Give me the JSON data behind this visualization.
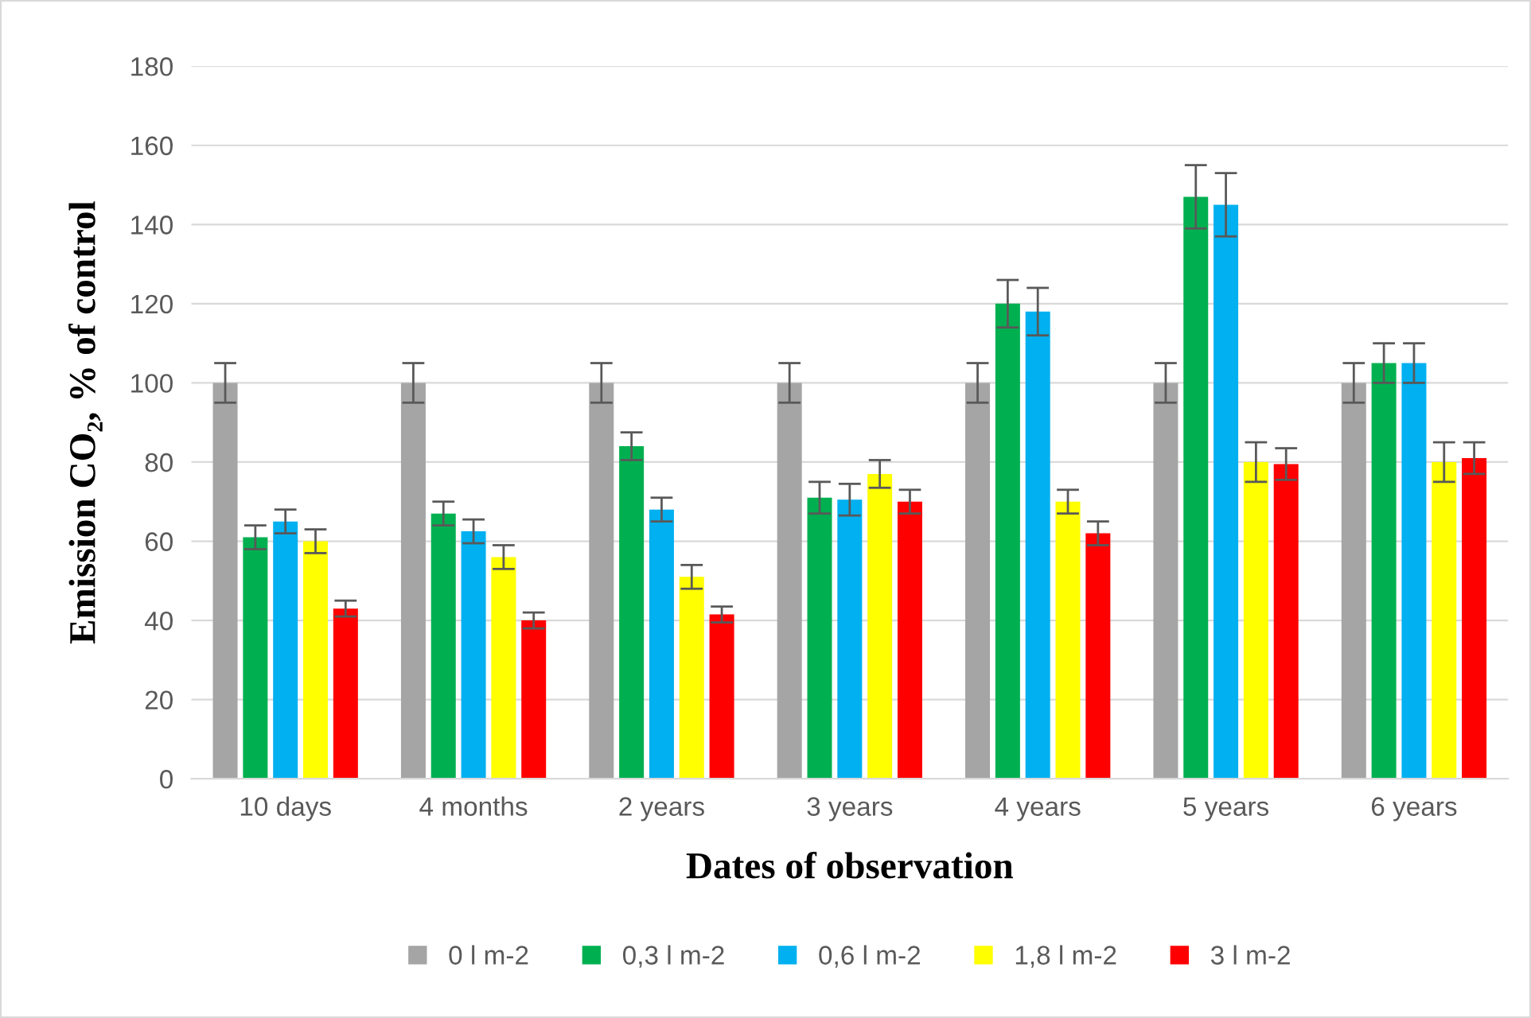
{
  "chart_data": {
    "type": "bar",
    "xlabel": "Dates of observation",
    "ylabel": "Emission CO₂, % of control",
    "categories": [
      "10 days",
      "4 months",
      "2 years",
      "3 years",
      "4 years",
      "5 years",
      "6 years"
    ],
    "series": [
      {
        "name": "0 l m-2",
        "color": "#a5a5a5",
        "values": [
          100,
          100,
          100,
          100,
          100,
          100,
          100
        ],
        "errors": [
          5,
          5,
          5,
          5,
          5,
          5,
          5
        ]
      },
      {
        "name": "0,3 l m-2",
        "color": "#00b050",
        "values": [
          61,
          67,
          84,
          71,
          120,
          147,
          105
        ],
        "errors": [
          3,
          3,
          3.5,
          4,
          6,
          8,
          5
        ]
      },
      {
        "name": "0,6 l m-2",
        "color": "#00b0f0",
        "values": [
          65,
          62.5,
          68,
          70.5,
          118,
          145,
          105
        ],
        "errors": [
          3,
          3,
          3,
          4,
          6,
          8,
          5
        ]
      },
      {
        "name": "1,8 l m-2",
        "color": "#ffff00",
        "values": [
          60,
          56,
          51,
          77,
          70,
          80,
          80
        ],
        "errors": [
          3,
          3,
          3,
          3.5,
          3,
          5,
          5
        ]
      },
      {
        "name": "3 l m-2",
        "color": "#ff0000",
        "values": [
          43,
          40,
          41.5,
          70,
          62,
          79.5,
          81
        ],
        "errors": [
          2,
          2,
          2,
          3,
          3,
          4,
          4
        ]
      }
    ],
    "ylim": [
      0,
      180
    ],
    "yticks": [
      0,
      20,
      40,
      60,
      80,
      100,
      120,
      140,
      160,
      180
    ],
    "grid": "y",
    "legend": "bottom"
  }
}
